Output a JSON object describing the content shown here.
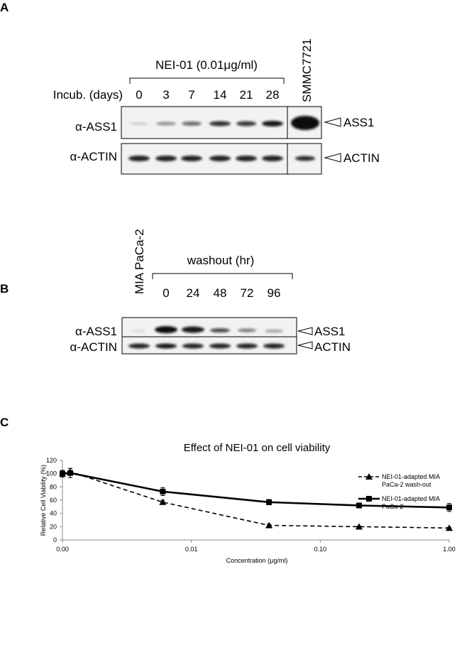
{
  "panel_a": {
    "label": "A",
    "treatment": "NEI-01 (0.01μg/ml)",
    "lane_title": "Incub. (days)",
    "lanes": [
      "0",
      "3",
      "7",
      "14",
      "21",
      "28"
    ],
    "control_lane": "SMMC7721",
    "rows": [
      "α-ASS1",
      "α-ACTIN"
    ],
    "targets": [
      "ASS1",
      "ACTIN"
    ]
  },
  "panel_b": {
    "label": "B",
    "control_lane": "MIA PaCa-2",
    "lane_title": "washout (hr)",
    "lanes": [
      "0",
      "24",
      "48",
      "72",
      "96"
    ],
    "rows": [
      "α-ASS1",
      "α-ACTIN"
    ],
    "targets": [
      "ASS1",
      "ACTIN"
    ]
  },
  "panel_c_label": "C",
  "chart_data": {
    "type": "line",
    "title": "Effect of NEI-01 on cell viability",
    "x_label": "Concentration (µg/ml)",
    "y_label": "Relative Cell Viability (%)",
    "x": [
      0.001,
      0.00115,
      0.006,
      0.04,
      0.2,
      1
    ],
    "xscale": "log",
    "xlim": [
      0.001,
      1
    ],
    "xticks": [
      {
        "value": 0.001,
        "label": "0.00"
      },
      {
        "value": 0.01,
        "label": "0.01"
      },
      {
        "value": 0.1,
        "label": "0.10"
      },
      {
        "value": 1,
        "label": "1.00"
      }
    ],
    "ylim": [
      0,
      120
    ],
    "yticks": [
      0,
      20,
      40,
      60,
      80,
      100,
      120
    ],
    "legend": "upper right",
    "series": [
      {
        "name": "NEI-01-adapted MIA PaCa-2 wash-out",
        "color": "#000000",
        "linestyle": "dashed",
        "marker": "triangle",
        "values": [
          100,
          103,
          57,
          22,
          20,
          18
        ],
        "errors": [
          3,
          5,
          3,
          2,
          1,
          1
        ]
      },
      {
        "name": "NEI-01-adapted MIA PaCa-2",
        "color": "#000000",
        "linestyle": "solid",
        "marker": "square",
        "values": [
          100,
          101,
          73,
          57,
          52,
          49
        ],
        "errors": [
          5,
          7,
          6,
          4,
          3,
          6
        ]
      }
    ]
  }
}
